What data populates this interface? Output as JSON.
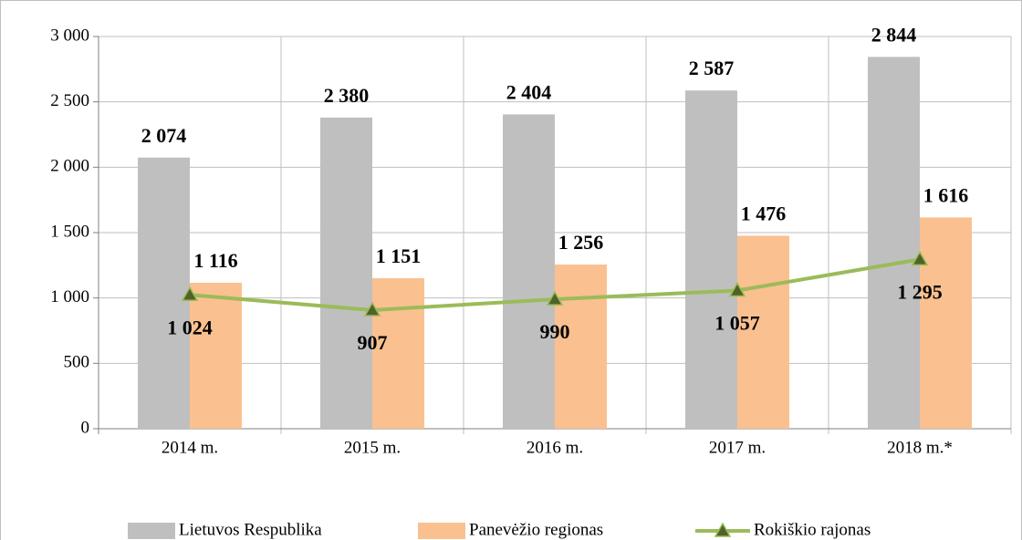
{
  "chart_data": {
    "type": "bar",
    "categories": [
      "2014 m.",
      "2015 m.",
      "2016 m.",
      "2017 m.",
      "2018 m.*"
    ],
    "series": [
      {
        "name": "Lietuvos Respublika",
        "type": "bar",
        "color": "#bfbfbf",
        "values": [
          2074,
          2380,
          2404,
          2587,
          2844
        ],
        "value_labels": [
          "2 074",
          "2 380",
          "2 404",
          "2 587",
          "2 844"
        ]
      },
      {
        "name": "Panevėžio regionas",
        "type": "bar",
        "color": "#fac090",
        "values": [
          1116,
          1151,
          1256,
          1476,
          1616
        ],
        "value_labels": [
          "1 116",
          "1 151",
          "1 256",
          "1 476",
          "1 616"
        ]
      },
      {
        "name": "Rokiškio rajonas",
        "type": "line",
        "color": "#9bbb59",
        "marker_color": "#4f6228",
        "values": [
          1024,
          907,
          990,
          1057,
          1295
        ],
        "value_labels": [
          "1 024",
          "907",
          "990",
          "1 057",
          "1 295"
        ]
      }
    ],
    "ylim": [
      0,
      3000
    ],
    "yticks": [
      0,
      500,
      {
        "value": 1000,
        "label": "1 000"
      },
      {
        "value": 1500,
        "label": "1 500"
      },
      {
        "value": 2000,
        "label": "2 000"
      },
      {
        "value": 2500,
        "label": "2 500"
      },
      {
        "value": 3000,
        "label": "3 000"
      }
    ],
    "grid": true,
    "legend": "bottom"
  }
}
